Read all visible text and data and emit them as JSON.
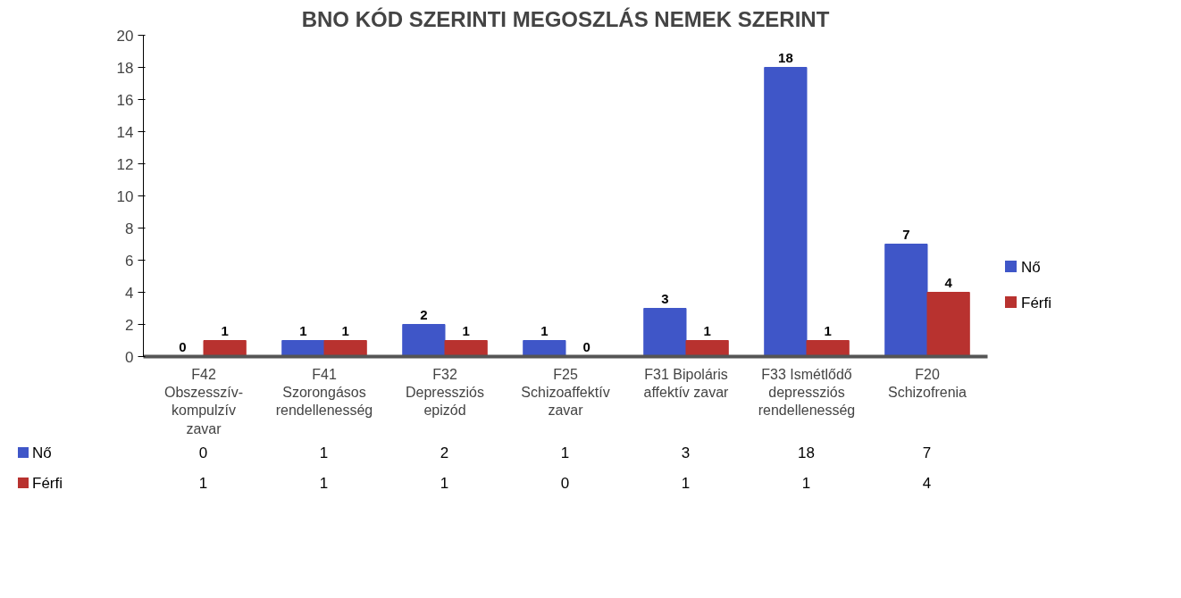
{
  "chart_data": {
    "type": "bar",
    "title": "BNO KÓD SZERINTI MEGOSZLÁS NEMEK SZERINT",
    "categories": [
      "F42 Obszesszív-kompulzív zavar",
      "F41 Szorongásos rendellenesség",
      "F32 Depressziós epizód",
      "F25 Schizoaffektív zavar",
      "F31 Bipoláris affektív zavar",
      "F33 Ismétlődő depressziós rendellenesség",
      "F20 Schizofrenia"
    ],
    "series": [
      {
        "name": "Nő",
        "color": "#3f56c8",
        "values": [
          0,
          1,
          2,
          1,
          3,
          18,
          7
        ],
        "value_labels": [
          "0",
          "1",
          "2",
          "1",
          "3",
          "18",
          "7"
        ]
      },
      {
        "name": "Férfi",
        "color": "#b8322f",
        "values": [
          1,
          1,
          1,
          0,
          1,
          1,
          4
        ],
        "value_labels": [
          "1",
          "1",
          "1",
          "0",
          "1",
          "1",
          "4"
        ]
      }
    ],
    "ylim": [
      0,
      20
    ],
    "yticks": [
      0,
      2,
      4,
      6,
      8,
      10,
      12,
      14,
      16,
      18,
      20
    ],
    "data_labels": true,
    "grid": false,
    "legend": "right"
  }
}
